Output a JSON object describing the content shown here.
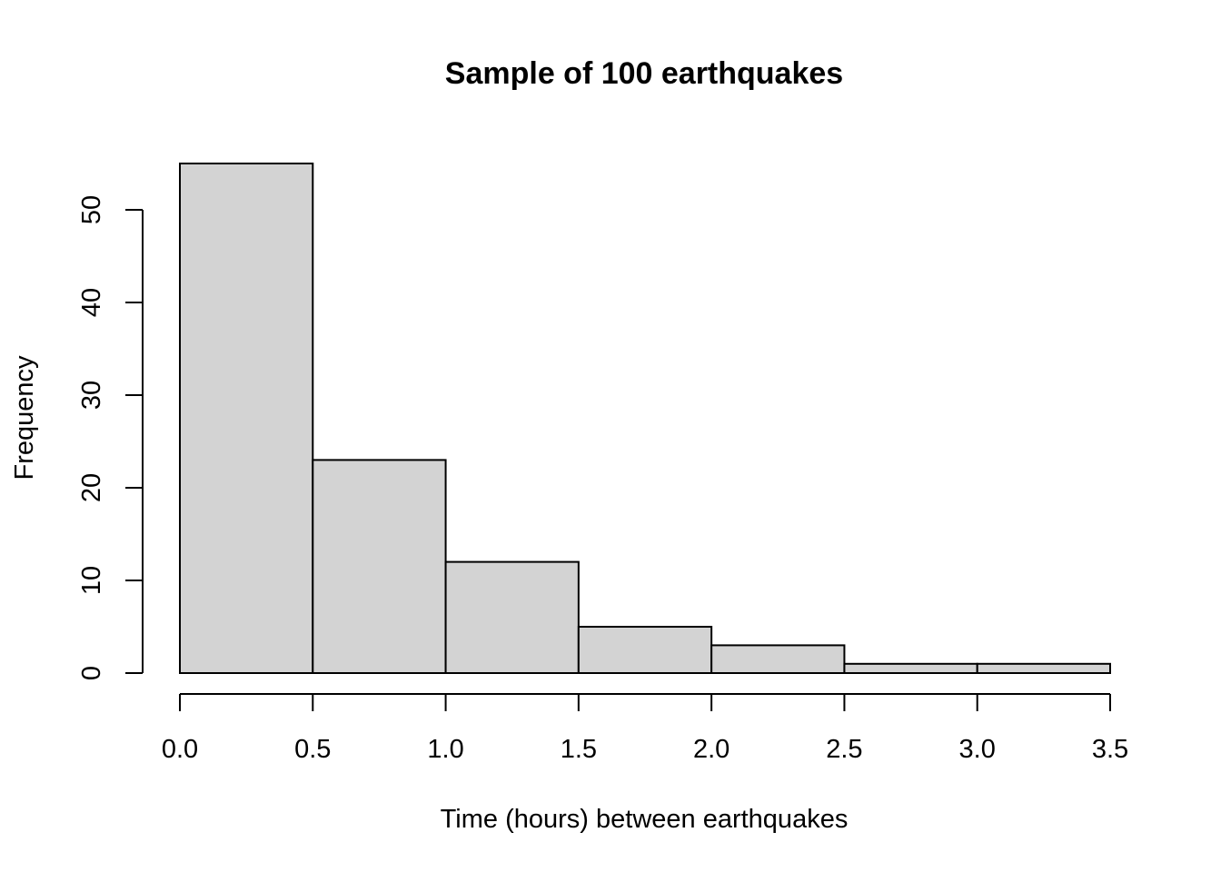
{
  "chart_data": {
    "type": "bar",
    "title": "Sample of 100 earthquakes",
    "xlabel": "Time (hours) between earthquakes",
    "ylabel": "Frequency",
    "bins": [
      {
        "start": 0.0,
        "end": 0.5,
        "count": 55
      },
      {
        "start": 0.5,
        "end": 1.0,
        "count": 23
      },
      {
        "start": 1.0,
        "end": 1.5,
        "count": 12
      },
      {
        "start": 1.5,
        "end": 2.0,
        "count": 5
      },
      {
        "start": 2.0,
        "end": 2.5,
        "count": 3
      },
      {
        "start": 2.5,
        "end": 3.0,
        "count": 1
      },
      {
        "start": 3.0,
        "end": 3.5,
        "count": 1
      }
    ],
    "x_ticks": [
      "0.0",
      "0.5",
      "1.0",
      "1.5",
      "2.0",
      "2.5",
      "3.0",
      "3.5"
    ],
    "y_ticks": [
      "0",
      "10",
      "20",
      "30",
      "40",
      "50"
    ],
    "xlim": [
      0,
      3.5
    ],
    "ylim": [
      0,
      55
    ],
    "grid": false,
    "bar_color": "#d3d3d3",
    "border_color": "#000000"
  }
}
